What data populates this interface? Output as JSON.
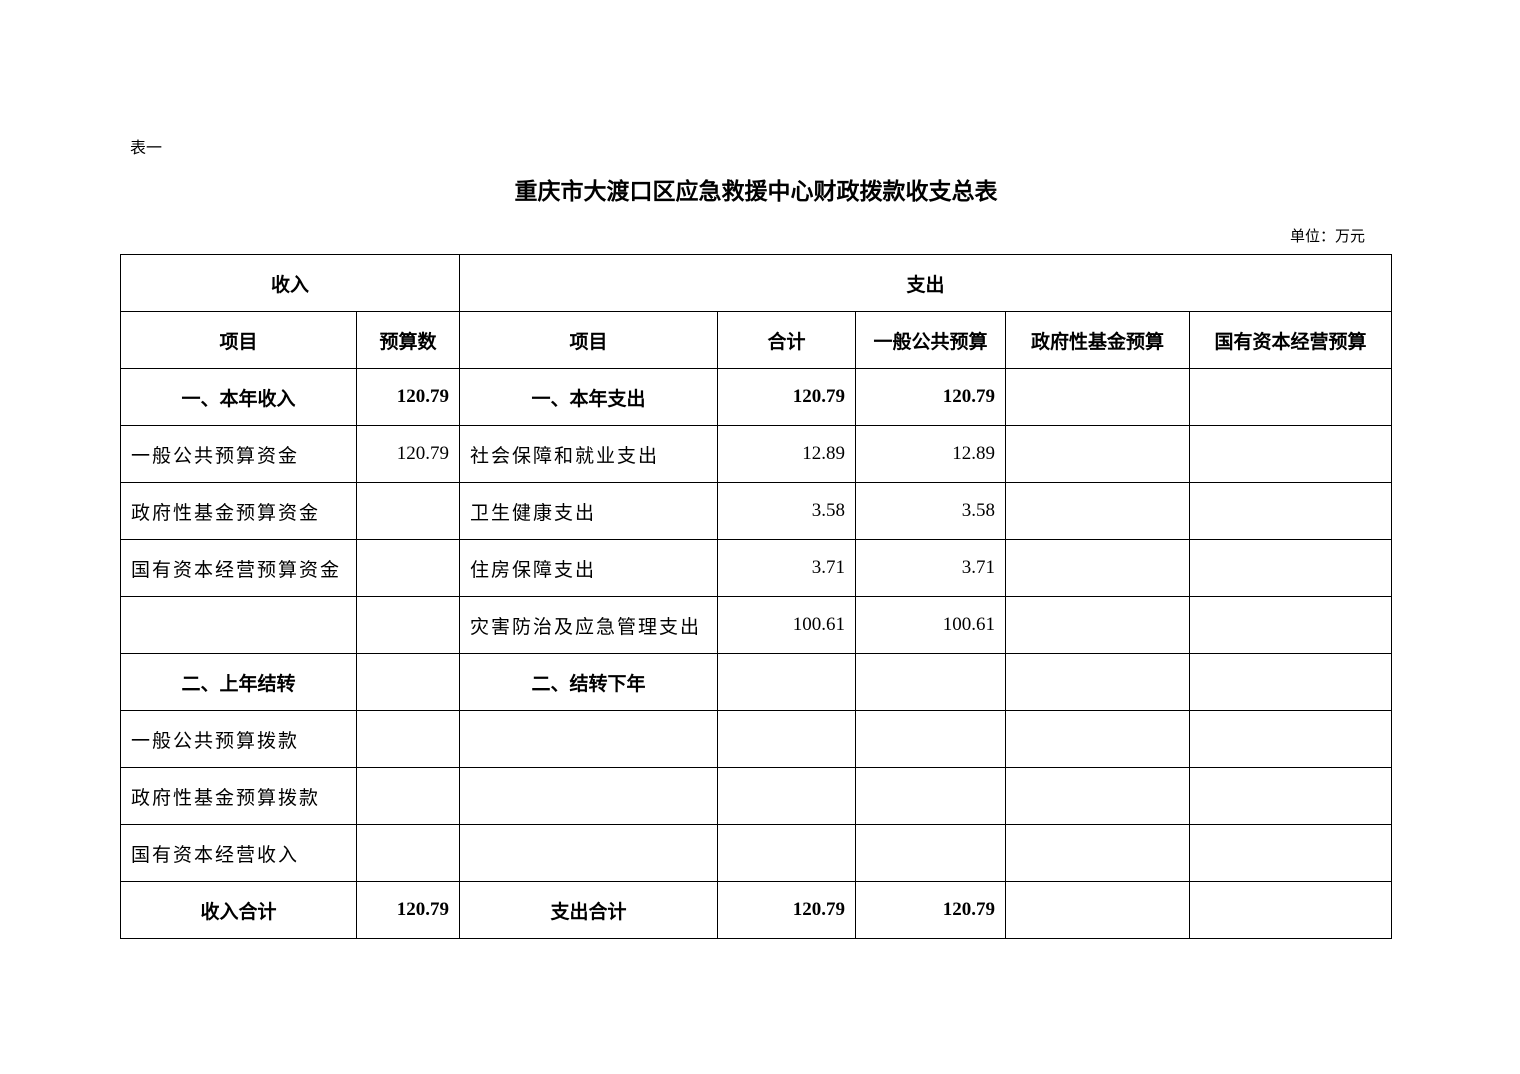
{
  "doc": {
    "label": "表一",
    "title": "重庆市大渡口区应急救援中心财政拨款收支总表",
    "unit": "单位：万元"
  },
  "table": {
    "group_headers": [
      "收入",
      "支出"
    ],
    "headers": [
      "项目",
      "预算数",
      "项目",
      "合计",
      "一般公共预算",
      "政府性基金预算",
      "国有资本经营预算"
    ],
    "rows": [
      [
        "一、本年收入",
        "120.79",
        "一、本年支出",
        "120.79",
        "120.79",
        "",
        ""
      ],
      [
        "一般公共预算资金",
        "120.79",
        "社会保障和就业支出",
        "12.89",
        "12.89",
        "",
        ""
      ],
      [
        "政府性基金预算资金",
        "",
        "卫生健康支出",
        "3.58",
        "3.58",
        "",
        ""
      ],
      [
        "国有资本经营预算资金",
        "",
        "住房保障支出",
        "3.71",
        "3.71",
        "",
        ""
      ],
      [
        "",
        "",
        "灾害防治及应急管理支出",
        "100.61",
        "100.61",
        "",
        ""
      ],
      [
        "二、上年结转",
        "",
        "二、结转下年",
        "",
        "",
        "",
        ""
      ],
      [
        "一般公共预算拨款",
        "",
        "",
        "",
        "",
        "",
        ""
      ],
      [
        "政府性基金预算拨款",
        "",
        "",
        "",
        "",
        "",
        ""
      ],
      [
        "国有资本经营收入",
        "",
        "",
        "",
        "",
        "",
        ""
      ],
      [
        "收入合计",
        "120.79",
        "支出合计",
        "120.79",
        "120.79",
        "",
        ""
      ]
    ]
  }
}
